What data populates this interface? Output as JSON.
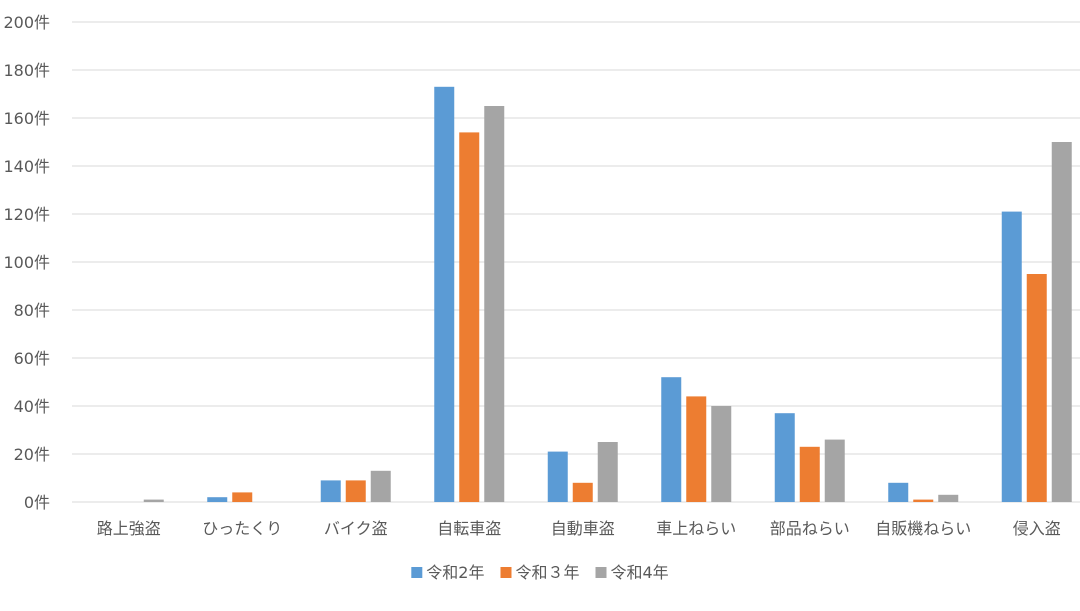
{
  "chart_data": {
    "type": "bar",
    "categories": [
      "路上強盗",
      "ひったくり",
      "バイク盗",
      "自転車盗",
      "自動車盗",
      "車上ねらい",
      "部品ねらい",
      "自販機ねらい",
      "侵入盗"
    ],
    "series": [
      {
        "name": "令和2年",
        "color": "#5b9bd5",
        "values": [
          0,
          2,
          9,
          173,
          21,
          52,
          37,
          8,
          121
        ]
      },
      {
        "name": "令和３年",
        "color": "#ed7d31",
        "values": [
          0,
          4,
          9,
          154,
          8,
          44,
          23,
          1,
          95
        ]
      },
      {
        "name": "令和4年",
        "color": "#a5a5a5",
        "values": [
          1,
          0,
          13,
          165,
          25,
          40,
          26,
          3,
          150
        ]
      }
    ],
    "yticks": [
      "0件",
      "20件",
      "40件",
      "60件",
      "80件",
      "100件",
      "120件",
      "140件",
      "160件",
      "180件",
      "200件"
    ],
    "ylim": [
      0,
      200
    ],
    "ystep": 20,
    "grid": true,
    "legend_position": "bottom"
  }
}
